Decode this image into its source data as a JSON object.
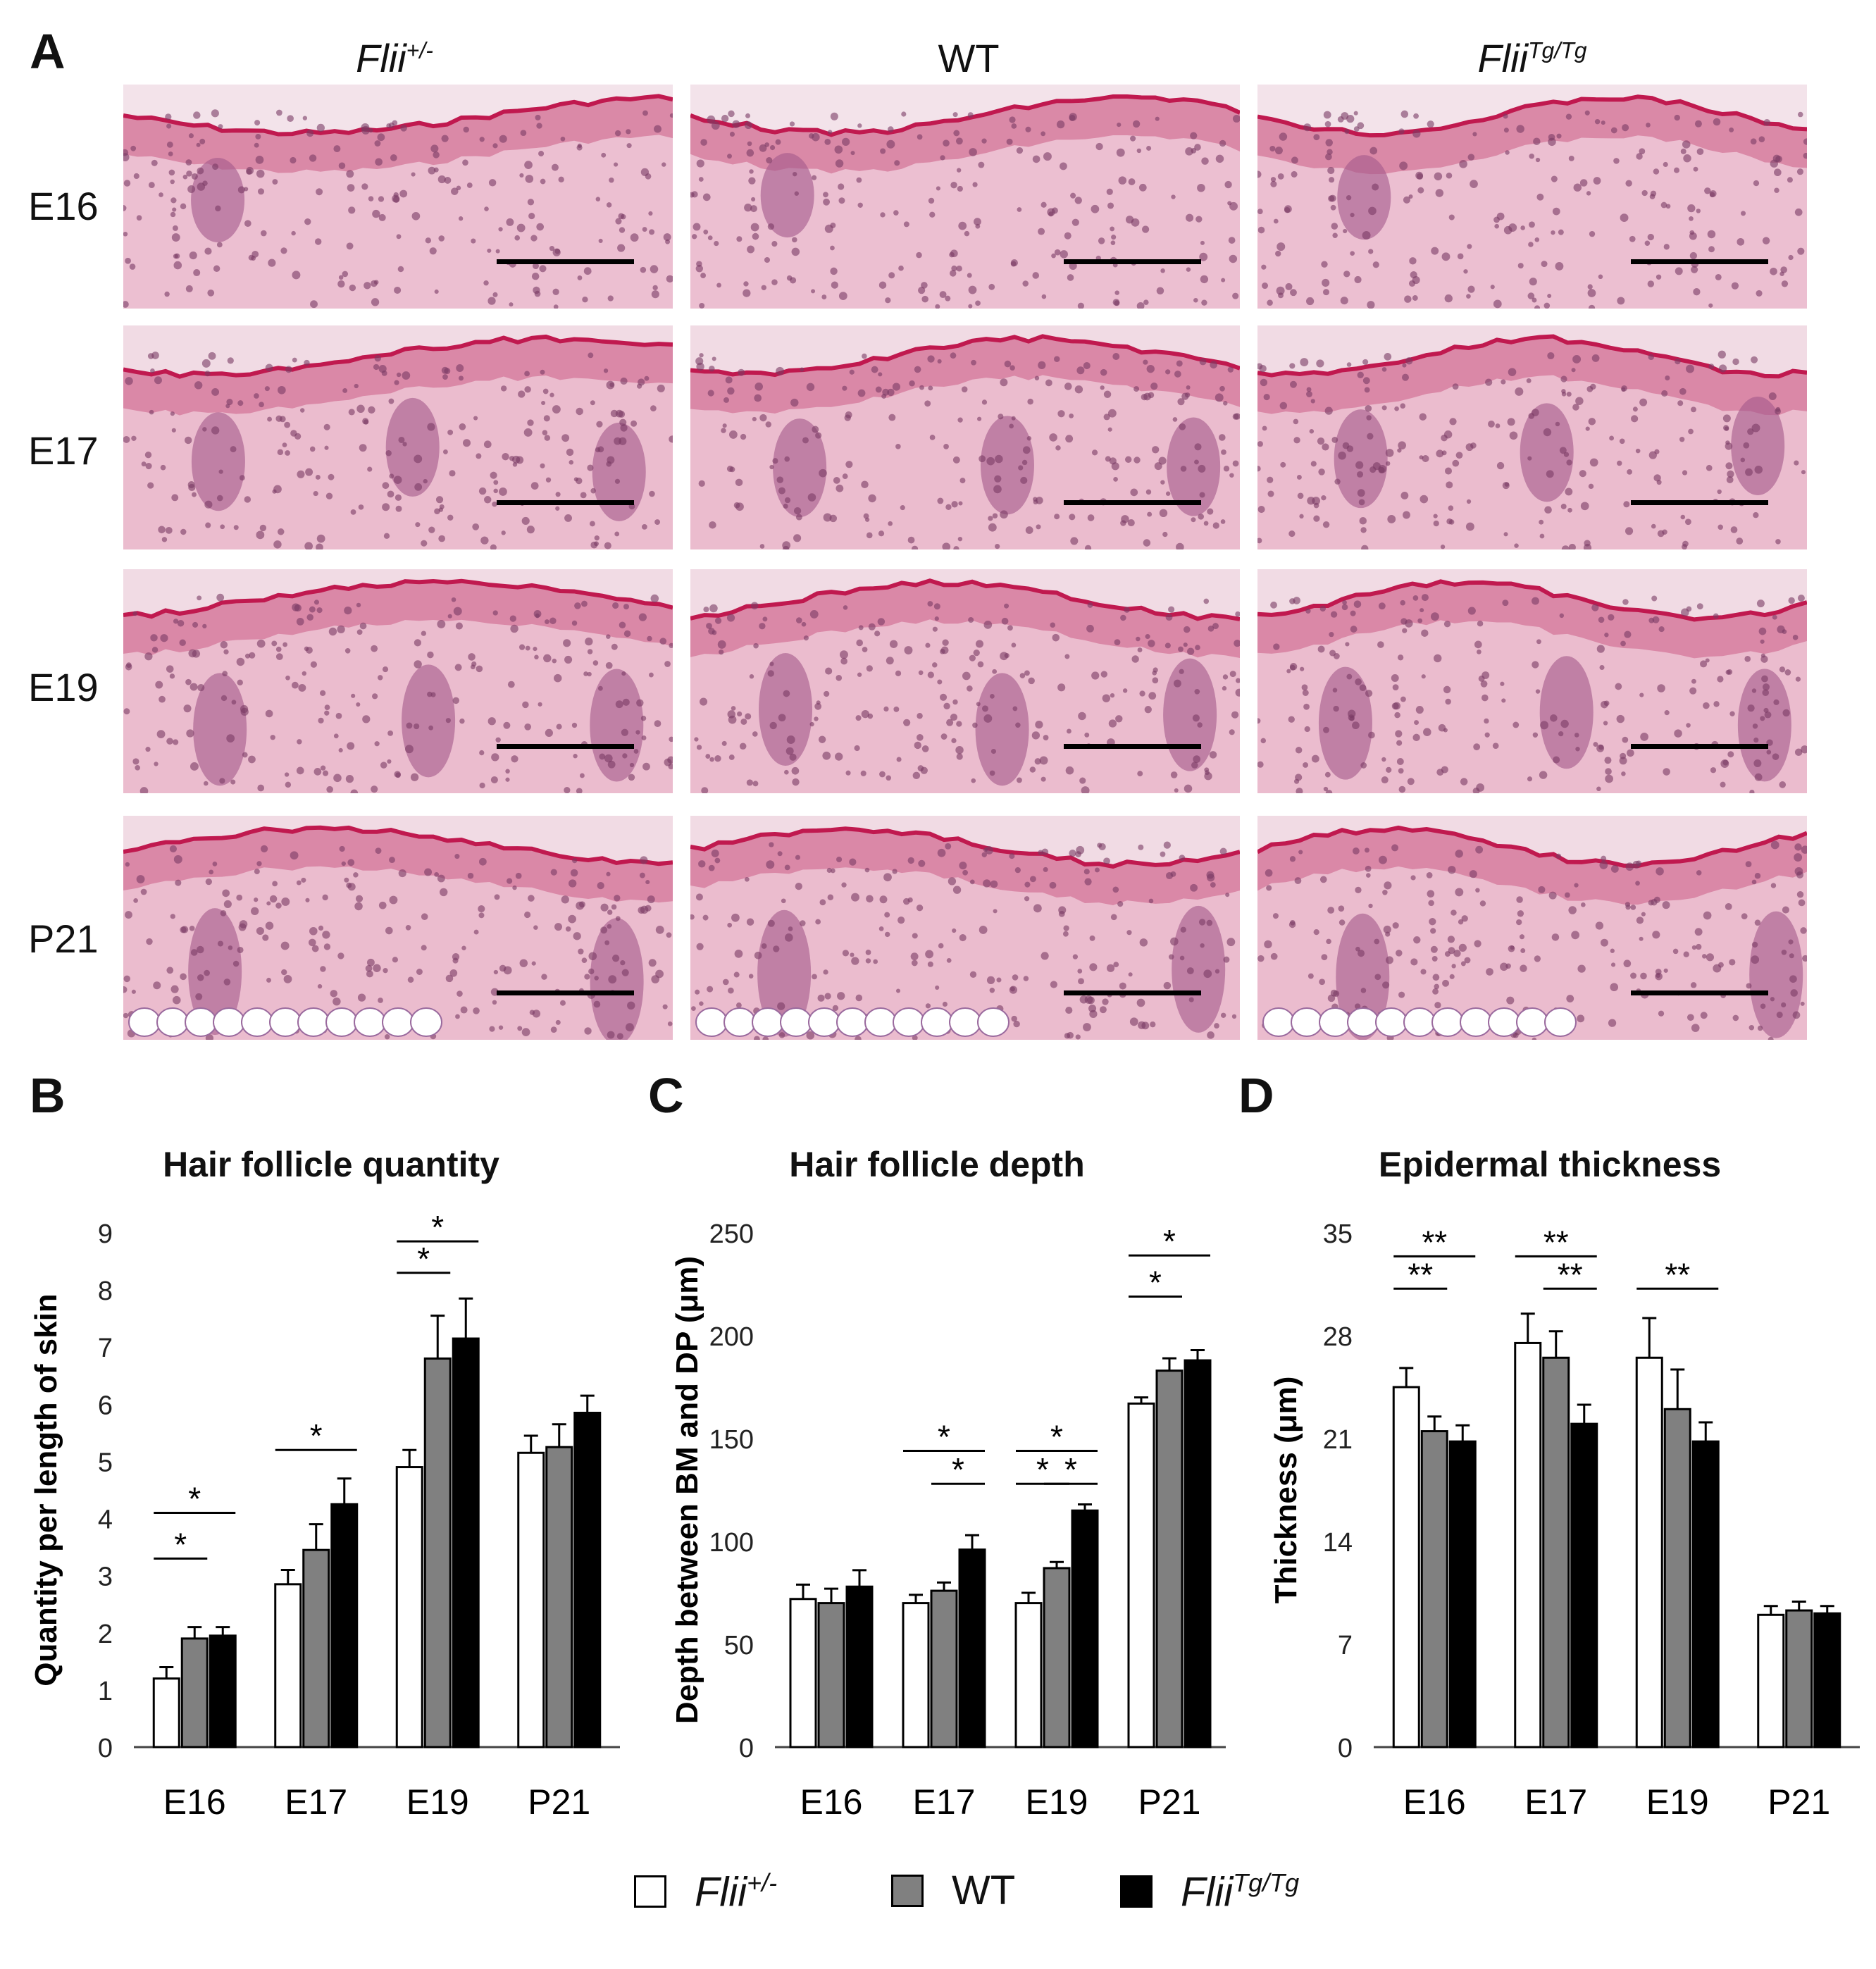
{
  "panels": {
    "a": "A",
    "b": "B",
    "c": "C",
    "d": "D"
  },
  "micrograph_grid": {
    "columns": [
      {
        "base": "Flii",
        "sup": "+/-"
      },
      {
        "base": "WT",
        "sup": ""
      },
      {
        "base": "Flii",
        "sup": "Tg/Tg"
      }
    ],
    "rows": [
      "E16",
      "E17",
      "E19",
      "P21"
    ]
  },
  "legend": [
    {
      "base": "Flii",
      "sup": "+/-",
      "italic": true,
      "color": "#ffffff"
    },
    {
      "base": "WT",
      "sup": "",
      "italic": false,
      "color": "#808080"
    },
    {
      "base": "Flii",
      "sup": "Tg/Tg",
      "italic": true,
      "color": "#000000"
    }
  ],
  "colors": {
    "flii_het": "#ffffff",
    "wt": "#808080",
    "flii_tg": "#000000",
    "tissue": "#e6a3bb",
    "nuclei": "#7a3a64"
  },
  "chart_data": [
    {
      "type": "bar",
      "title": "Hair follicle quantity",
      "ylabel": "Quantity per length of skin",
      "xlabel": "",
      "categories": [
        "E16",
        "E17",
        "E19",
        "P21"
      ],
      "ylim": [
        0,
        9
      ],
      "yticks": [
        "0",
        "1",
        "2",
        "3",
        "4",
        "5",
        "6",
        "7",
        "8",
        "9"
      ],
      "series": [
        {
          "name": "Flii+/-",
          "values": [
            1.2,
            2.85,
            4.9,
            5.15
          ],
          "errors": [
            0.2,
            0.25,
            0.3,
            0.3
          ]
        },
        {
          "name": "WT",
          "values": [
            1.9,
            3.45,
            6.8,
            5.25
          ],
          "errors": [
            0.2,
            0.45,
            0.75,
            0.4
          ]
        },
        {
          "name": "FliiTg/Tg",
          "values": [
            1.95,
            4.25,
            7.15,
            5.85
          ],
          "errors": [
            0.15,
            0.45,
            0.7,
            0.3
          ]
        }
      ],
      "significance": [
        {
          "category": 0,
          "from": 0,
          "to": 1,
          "level": 3.3,
          "label": "*"
        },
        {
          "category": 0,
          "from": 0,
          "to": 2,
          "level": 4.1,
          "label": "*"
        },
        {
          "category": 1,
          "from": 0,
          "to": 2,
          "level": 5.2,
          "label": "*"
        },
        {
          "category": 2,
          "from": 0,
          "to": 1,
          "level": 8.3,
          "label": "*"
        },
        {
          "category": 2,
          "from": 0,
          "to": 2,
          "level": 8.85,
          "label": "*"
        }
      ]
    },
    {
      "type": "bar",
      "title": "Hair follicle depth",
      "ylabel": "Depth between BM and DP (μm)",
      "xlabel": "",
      "categories": [
        "E16",
        "E17",
        "E19",
        "P21"
      ],
      "ylim": [
        0,
        250
      ],
      "yticks": [
        "0",
        "50",
        "100",
        "150",
        "200",
        "250"
      ],
      "series": [
        {
          "name": "Flii+/-",
          "values": [
            72,
            70,
            70,
            167
          ],
          "errors": [
            7,
            4,
            5,
            3
          ]
        },
        {
          "name": "WT",
          "values": [
            70,
            76,
            87,
            183
          ],
          "errors": [
            7,
            4,
            3,
            6
          ]
        },
        {
          "name": "FliiTg/Tg",
          "values": [
            78,
            96,
            115,
            188
          ],
          "errors": [
            8,
            7,
            3,
            5
          ]
        }
      ],
      "significance": [
        {
          "category": 1,
          "from": 1,
          "to": 2,
          "level": 128,
          "label": "*"
        },
        {
          "category": 1,
          "from": 0,
          "to": 2,
          "level": 144,
          "label": "*"
        },
        {
          "category": 2,
          "from": 0,
          "to": 1,
          "level": 128,
          "label": "*"
        },
        {
          "category": 2,
          "from": 1,
          "to": 2,
          "level": 128,
          "label": "*"
        },
        {
          "category": 2,
          "from": 0,
          "to": 2,
          "level": 144,
          "label": "*"
        },
        {
          "category": 3,
          "from": 0,
          "to": 1,
          "level": 219,
          "label": "*"
        },
        {
          "category": 3,
          "from": 0,
          "to": 2,
          "level": 239,
          "label": "*"
        }
      ]
    },
    {
      "type": "bar",
      "title": "Epidermal thickness",
      "ylabel": "Thickness (μm)",
      "xlabel": "",
      "categories": [
        "E16",
        "E17",
        "E19",
        "P21"
      ],
      "ylim": [
        0,
        35
      ],
      "yticks": [
        "0",
        "7",
        "14",
        "21",
        "28",
        "35"
      ],
      "series": [
        {
          "name": "Flii+/-",
          "values": [
            24.5,
            27.5,
            26.5,
            9.0
          ],
          "errors": [
            1.3,
            2.0,
            2.7,
            0.6
          ]
        },
        {
          "name": "WT",
          "values": [
            21.5,
            26.5,
            23.0,
            9.3
          ],
          "errors": [
            1.0,
            1.8,
            2.7,
            0.6
          ]
        },
        {
          "name": "FliiTg/Tg",
          "values": [
            20.8,
            22.0,
            20.8,
            9.1
          ],
          "errors": [
            1.1,
            1.3,
            1.3,
            0.5
          ]
        }
      ],
      "significance": [
        {
          "category": 0,
          "from": 0,
          "to": 1,
          "level": 31.2,
          "label": "**"
        },
        {
          "category": 0,
          "from": 0,
          "to": 2,
          "level": 33.4,
          "label": "**"
        },
        {
          "category": 1,
          "from": 1,
          "to": 2,
          "level": 31.2,
          "label": "**"
        },
        {
          "category": 1,
          "from": 0,
          "to": 2,
          "level": 33.4,
          "label": "**"
        },
        {
          "category": 2,
          "from": 0,
          "to": 2,
          "level": 31.2,
          "label": "**"
        }
      ]
    }
  ]
}
